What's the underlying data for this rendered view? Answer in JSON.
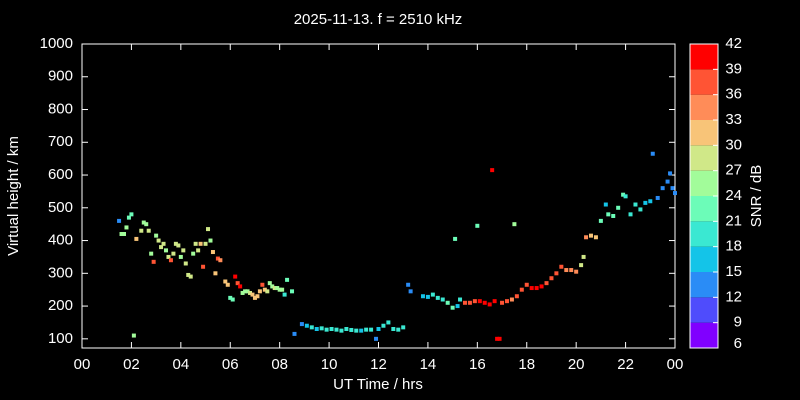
{
  "chart_data": {
    "type": "scatter",
    "title": "2025-11-13. f = 2510 kHz",
    "x_label": "UT Time / hrs",
    "y_label": "Virtual height / km",
    "xlim": [
      0,
      24
    ],
    "xticks": [
      {
        "value": 0,
        "label": "00"
      },
      {
        "value": 2,
        "label": "02"
      },
      {
        "value": 4,
        "label": "04"
      },
      {
        "value": 6,
        "label": "06"
      },
      {
        "value": 8,
        "label": "08"
      },
      10,
      12,
      14,
      16,
      18,
      20,
      22,
      {
        "value": 24,
        "label": "00"
      }
    ],
    "ylim": [
      72,
      1000
    ],
    "yticks": [
      100,
      200,
      300,
      400,
      500,
      600,
      700,
      800,
      900,
      1000
    ],
    "colorbar": {
      "label": "SNR / dB",
      "lim": [
        6,
        42
      ],
      "ticks": [
        6,
        9,
        12,
        15,
        18,
        21,
        24,
        27,
        30,
        33,
        36,
        39,
        42
      ],
      "colors": [
        "#8000ff",
        "#4f4cfc",
        "#2a8cf6",
        "#14c4e8",
        "#3ae8d2",
        "#6cfcb8",
        "#a2fc9a",
        "#d0e888",
        "#f8c478",
        "#ff8c58",
        "#ff5434",
        "#ff0000"
      ]
    },
    "x": [
      1.5,
      1.6,
      1.7,
      1.8,
      1.9,
      2.0,
      2.1,
      2.2,
      2.4,
      2.5,
      2.6,
      2.7,
      2.8,
      2.9,
      3.0,
      3.1,
      3.2,
      3.3,
      3.4,
      3.5,
      3.6,
      3.7,
      3.8,
      3.9,
      4.0,
      4.1,
      4.2,
      4.3,
      4.4,
      4.5,
      4.6,
      4.7,
      4.8,
      4.9,
      5.0,
      5.1,
      5.2,
      5.3,
      5.4,
      5.5,
      5.6,
      5.8,
      5.9,
      6.0,
      6.1,
      6.2,
      6.3,
      6.4,
      6.5,
      6.6,
      6.7,
      6.8,
      6.9,
      7.0,
      7.1,
      7.2,
      7.3,
      7.4,
      7.5,
      7.6,
      7.7,
      7.8,
      7.9,
      8.0,
      8.1,
      8.2,
      8.3,
      8.5,
      8.6,
      8.9,
      9.1,
      9.3,
      9.5,
      9.7,
      9.9,
      10.1,
      10.3,
      10.5,
      10.7,
      10.9,
      11.1,
      11.3,
      11.5,
      11.7,
      11.9,
      12.0,
      12.2,
      12.4,
      12.6,
      12.8,
      13.0,
      13.2,
      13.3,
      13.8,
      14.0,
      14.2,
      14.4,
      14.6,
      14.8,
      15.0,
      15.1,
      15.2,
      15.3,
      15.5,
      15.7,
      15.9,
      16.0,
      16.1,
      16.3,
      16.5,
      16.6,
      16.7,
      16.8,
      16.9,
      17.0,
      17.2,
      17.4,
      17.5,
      17.6,
      17.8,
      18.0,
      18.2,
      18.4,
      18.6,
      18.8,
      19.0,
      19.2,
      19.4,
      19.6,
      19.8,
      20.0,
      20.2,
      20.3,
      20.4,
      20.6,
      20.8,
      21.0,
      21.2,
      21.3,
      21.5,
      21.7,
      21.9,
      22.0,
      22.2,
      22.4,
      22.6,
      22.8,
      23.0,
      23.1,
      23.3,
      23.5,
      23.7,
      23.8,
      23.9,
      24.0
    ],
    "values": [
      460,
      420,
      420,
      440,
      470,
      480,
      110,
      405,
      430,
      455,
      450,
      430,
      360,
      335,
      415,
      400,
      380,
      390,
      370,
      350,
      340,
      360,
      390,
      385,
      350,
      370,
      330,
      295,
      290,
      360,
      390,
      370,
      390,
      320,
      390,
      435,
      400,
      365,
      300,
      345,
      340,
      275,
      265,
      225,
      220,
      290,
      270,
      260,
      240,
      245,
      245,
      240,
      235,
      225,
      230,
      245,
      265,
      250,
      245,
      270,
      260,
      255,
      255,
      250,
      250,
      235,
      280,
      245,
      115,
      145,
      140,
      135,
      130,
      132,
      128,
      130,
      128,
      125,
      130,
      127,
      125,
      125,
      128,
      128,
      100,
      130,
      140,
      150,
      130,
      128,
      135,
      265,
      245,
      230,
      228,
      235,
      225,
      220,
      210,
      195,
      405,
      200,
      220,
      210,
      210,
      215,
      445,
      215,
      210,
      205,
      615,
      215,
      100,
      100,
      210,
      215,
      220,
      450,
      230,
      250,
      265,
      255,
      255,
      260,
      270,
      285,
      300,
      320,
      310,
      310,
      305,
      325,
      350,
      410,
      415,
      410,
      460,
      510,
      480,
      475,
      500,
      540,
      535,
      480,
      510,
      495,
      515,
      520,
      665,
      530,
      560,
      580,
      605,
      560,
      545
    ],
    "snr": [
      12,
      24,
      24,
      24,
      21,
      21,
      24,
      30,
      27,
      24,
      24,
      27,
      24,
      36,
      24,
      27,
      27,
      27,
      24,
      27,
      36,
      27,
      27,
      27,
      24,
      27,
      27,
      27,
      27,
      24,
      27,
      27,
      30,
      36,
      27,
      27,
      24,
      30,
      30,
      36,
      33,
      30,
      30,
      21,
      21,
      39,
      36,
      39,
      24,
      24,
      24,
      27,
      30,
      30,
      30,
      30,
      36,
      30,
      27,
      24,
      24,
      27,
      24,
      24,
      24,
      18,
      21,
      21,
      12,
      12,
      15,
      18,
      15,
      18,
      18,
      18,
      18,
      18,
      18,
      18,
      18,
      15,
      18,
      18,
      12,
      15,
      18,
      18,
      18,
      18,
      18,
      12,
      12,
      15,
      15,
      18,
      18,
      18,
      21,
      21,
      21,
      15,
      18,
      36,
      36,
      36,
      21,
      39,
      39,
      39,
      39,
      39,
      39,
      39,
      36,
      36,
      33,
      24,
      36,
      36,
      36,
      39,
      39,
      39,
      36,
      36,
      36,
      36,
      33,
      33,
      33,
      27,
      27,
      33,
      30,
      30,
      21,
      15,
      21,
      21,
      21,
      21,
      18,
      18,
      18,
      18,
      15,
      15,
      12,
      12,
      12,
      12,
      12,
      12,
      12
    ]
  }
}
